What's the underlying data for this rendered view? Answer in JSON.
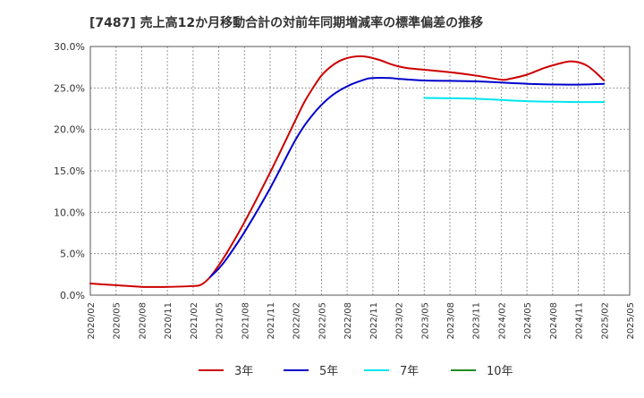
{
  "chart_data": {
    "type": "line",
    "title": "[7487]  売上高12か月移動合計の対前年同期増減率の標準偏差の推移",
    "xlabel": "",
    "ylabel": "",
    "ylim": [
      0,
      30
    ],
    "yticks": [
      0,
      5,
      10,
      15,
      20,
      25,
      30
    ],
    "ytick_labels": [
      "0.0%",
      "5.0%",
      "10.0%",
      "15.0%",
      "20.0%",
      "25.0%",
      "30.0%"
    ],
    "xticks": [
      "2020/02",
      "2020/05",
      "2020/08",
      "2020/11",
      "2021/02",
      "2021/05",
      "2021/08",
      "2021/11",
      "2022/02",
      "2022/05",
      "2022/08",
      "2022/11",
      "2023/02",
      "2023/05",
      "2023/08",
      "2023/11",
      "2024/02",
      "2024/05",
      "2024/08",
      "2024/11",
      "2025/02",
      "2025/05"
    ],
    "grid": true,
    "legend_position": "bottom",
    "series": [
      {
        "name": "3年",
        "color": "#cc0000",
        "points": [
          [
            "2020/02",
            1.4
          ],
          [
            "2020/05",
            1.2
          ],
          [
            "2020/08",
            1.0
          ],
          [
            "2020/11",
            1.0
          ],
          [
            "2021/02",
            1.1
          ],
          [
            "2021/03",
            1.3
          ],
          [
            "2021/04",
            2.2
          ],
          [
            "2021/05",
            3.6
          ],
          [
            "2021/06",
            5.2
          ],
          [
            "2021/08",
            8.8
          ],
          [
            "2021/11",
            14.8
          ],
          [
            "2022/02",
            21.2
          ],
          [
            "2022/03",
            23.3
          ],
          [
            "2022/04",
            25.0
          ],
          [
            "2022/05",
            26.5
          ],
          [
            "2022/06",
            27.5
          ],
          [
            "2022/07",
            28.2
          ],
          [
            "2022/08",
            28.6
          ],
          [
            "2022/09",
            28.8
          ],
          [
            "2022/10",
            28.8
          ],
          [
            "2022/11",
            28.6
          ],
          [
            "2022/12",
            28.3
          ],
          [
            "2023/01",
            27.9
          ],
          [
            "2023/02",
            27.6
          ],
          [
            "2023/03",
            27.4
          ],
          [
            "2023/05",
            27.2
          ],
          [
            "2023/08",
            26.9
          ],
          [
            "2023/11",
            26.5
          ],
          [
            "2024/02",
            26.0
          ],
          [
            "2024/03",
            26.1
          ],
          [
            "2024/05",
            26.6
          ],
          [
            "2024/07",
            27.4
          ],
          [
            "2024/09",
            28.0
          ],
          [
            "2024/10",
            28.2
          ],
          [
            "2024/11",
            28.1
          ],
          [
            "2024/12",
            27.7
          ],
          [
            "2025/01",
            26.9
          ],
          [
            "2025/02",
            25.9
          ]
        ]
      },
      {
        "name": "5年",
        "color": "#0000cc",
        "points": [
          [
            "2021/04",
            2.2
          ],
          [
            "2021/05",
            3.2
          ],
          [
            "2021/06",
            4.5
          ],
          [
            "2021/08",
            7.6
          ],
          [
            "2021/11",
            12.9
          ],
          [
            "2022/02",
            18.8
          ],
          [
            "2022/04",
            21.8
          ],
          [
            "2022/06",
            23.9
          ],
          [
            "2022/08",
            25.2
          ],
          [
            "2022/10",
            26.0
          ],
          [
            "2022/11",
            26.2
          ],
          [
            "2023/01",
            26.2
          ],
          [
            "2023/02",
            26.1
          ],
          [
            "2023/05",
            25.9
          ],
          [
            "2023/11",
            25.8
          ],
          [
            "2024/05",
            25.5
          ],
          [
            "2024/11",
            25.4
          ],
          [
            "2025/02",
            25.5
          ]
        ]
      },
      {
        "name": "7年",
        "color": "#00e5ee",
        "points": [
          [
            "2023/05",
            23.8
          ],
          [
            "2023/11",
            23.7
          ],
          [
            "2024/05",
            23.4
          ],
          [
            "2024/11",
            23.3
          ],
          [
            "2025/02",
            23.3
          ]
        ]
      },
      {
        "name": "10年",
        "color": "#228b22",
        "points": []
      }
    ]
  }
}
